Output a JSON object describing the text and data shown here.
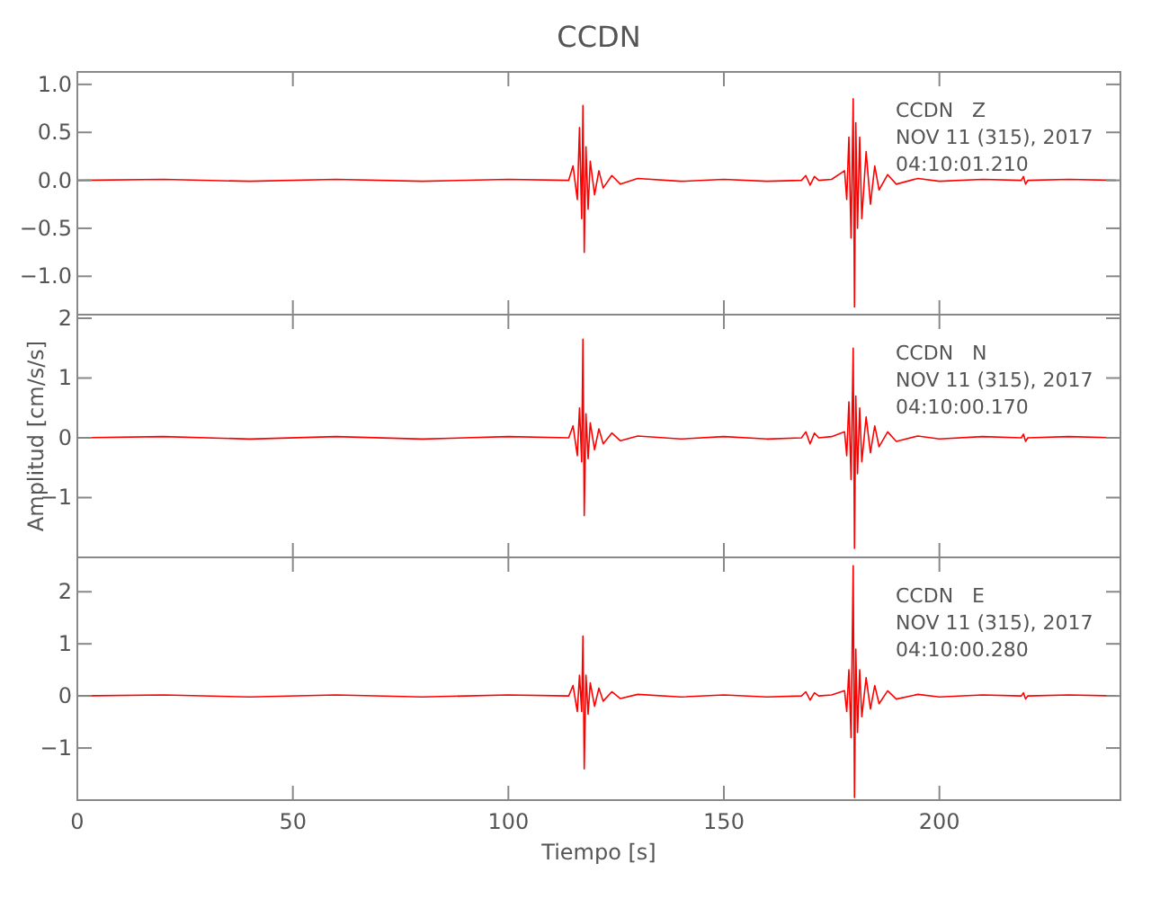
{
  "chart_data": [
    {
      "type": "line",
      "title": "CCDN",
      "x": [
        0,
        20,
        40,
        60,
        80,
        100,
        114,
        115,
        116,
        116.5,
        117,
        117.3,
        117.6,
        118,
        118.5,
        119,
        120,
        121,
        122,
        124,
        126,
        130,
        140,
        150,
        160,
        168,
        169,
        170,
        171,
        172,
        175,
        178,
        178.5,
        179,
        179.5,
        180,
        180.3,
        180.6,
        181,
        181.5,
        182,
        183,
        184,
        185,
        186,
        188,
        190,
        195,
        200,
        210,
        219,
        219.5,
        220,
        220.5,
        230,
        241
      ],
      "series": [
        {
          "color": "#ff0000",
          "values": [
            0,
            0.01,
            -0.01,
            0.01,
            -0.01,
            0.01,
            0,
            0.15,
            -0.2,
            0.55,
            -0.4,
            0.78,
            -0.75,
            0.35,
            -0.3,
            0.2,
            -0.15,
            0.1,
            -0.08,
            0.05,
            -0.04,
            0.02,
            -0.01,
            0.01,
            -0.01,
            0,
            0.05,
            -0.05,
            0.04,
            0,
            0.01,
            0.1,
            -0.2,
            0.45,
            -0.6,
            0.85,
            -1.32,
            0.6,
            -0.5,
            0.45,
            -0.4,
            0.3,
            -0.25,
            0.15,
            -0.1,
            0.06,
            -0.04,
            0.02,
            -0.01,
            0.01,
            0,
            0.04,
            -0.04,
            0,
            0.01,
            0
          ]
        }
      ],
      "xlim": [
        0,
        242
      ],
      "xticks": [
        0,
        50,
        100,
        150,
        200
      ],
      "ylim": [
        -1.4,
        1.13
      ],
      "yticks": [
        {
          "value": -1,
          "label": "−1.0"
        },
        {
          "value": -0.5,
          "label": "−0.5"
        },
        {
          "value": 0,
          "label": "0.0"
        },
        {
          "value": 0.5,
          "label": "0.5"
        },
        {
          "value": 1,
          "label": "1.0"
        }
      ],
      "tick_labels": "y",
      "grid": false,
      "marker": "none",
      "line_style": "solid",
      "annotations": [
        "CCDN   Z",
        "NOV 11 (315), 2017",
        "04:10:01.210"
      ]
    },
    {
      "type": "line",
      "ylabel": "Amplitud [cm/s/s]",
      "x": [
        0,
        20,
        40,
        60,
        80,
        100,
        114,
        115,
        116,
        116.5,
        117,
        117.3,
        117.6,
        118,
        118.5,
        119,
        120,
        121,
        122,
        124,
        126,
        130,
        140,
        150,
        160,
        168,
        169,
        170,
        171,
        172,
        175,
        178,
        178.5,
        179,
        179.5,
        180,
        180.3,
        180.6,
        181,
        181.5,
        182,
        183,
        184,
        185,
        186,
        188,
        190,
        195,
        200,
        210,
        219,
        219.5,
        220,
        220.5,
        230,
        241
      ],
      "series": [
        {
          "color": "#ff0000",
          "values": [
            0,
            0.02,
            -0.02,
            0.02,
            -0.02,
            0.02,
            0,
            0.2,
            -0.3,
            0.5,
            -0.4,
            1.65,
            -1.3,
            0.4,
            -0.35,
            0.25,
            -0.2,
            0.15,
            -0.1,
            0.08,
            -0.05,
            0.03,
            -0.02,
            0.02,
            -0.02,
            0,
            0.1,
            -0.1,
            0.08,
            0,
            0.02,
            0.1,
            -0.3,
            0.6,
            -0.7,
            1.5,
            -1.85,
            0.7,
            -0.6,
            0.5,
            -0.4,
            0.35,
            -0.25,
            0.2,
            -0.15,
            0.1,
            -0.06,
            0.03,
            -0.02,
            0.02,
            0,
            0.06,
            -0.06,
            0,
            0.02,
            0
          ]
        }
      ],
      "xlim": [
        0,
        242
      ],
      "xticks": [
        0,
        50,
        100,
        150,
        200
      ],
      "ylim": [
        -2,
        2.06
      ],
      "yticks": [
        -1,
        0,
        1,
        2
      ],
      "tick_labels": "y",
      "grid": false,
      "marker": "none",
      "line_style": "solid",
      "annotations": [
        "CCDN   N",
        "NOV 11 (315), 2017",
        "04:10:00.170"
      ]
    },
    {
      "type": "line",
      "xlabel": "Tiempo [s]",
      "x": [
        0,
        20,
        40,
        60,
        80,
        100,
        114,
        115,
        116,
        116.5,
        117,
        117.3,
        117.6,
        118,
        118.5,
        119,
        120,
        121,
        122,
        124,
        126,
        130,
        140,
        150,
        160,
        168,
        169,
        170,
        171,
        172,
        175,
        178,
        178.5,
        179,
        179.5,
        180,
        180.3,
        180.6,
        181,
        181.5,
        182,
        183,
        184,
        185,
        186,
        188,
        190,
        195,
        200,
        210,
        219,
        219.5,
        220,
        220.5,
        230,
        241
      ],
      "series": [
        {
          "color": "#ff0000",
          "values": [
            0,
            0.02,
            -0.02,
            0.02,
            -0.02,
            0.02,
            0,
            0.2,
            -0.3,
            0.4,
            -0.3,
            1.15,
            -1.4,
            0.4,
            -0.35,
            0.25,
            -0.2,
            0.15,
            -0.1,
            0.08,
            -0.05,
            0.03,
            -0.02,
            0.02,
            -0.02,
            0,
            0.08,
            -0.08,
            0.06,
            0,
            0.02,
            0.1,
            -0.3,
            0.5,
            -0.8,
            2.5,
            -1.95,
            0.9,
            -0.7,
            0.5,
            -0.4,
            0.35,
            -0.25,
            0.2,
            -0.15,
            0.1,
            -0.06,
            0.03,
            -0.02,
            0.02,
            0,
            0.06,
            -0.06,
            0,
            0.02,
            0
          ]
        }
      ],
      "xlim": [
        0,
        242
      ],
      "xticks": [
        0,
        50,
        100,
        150,
        200
      ],
      "ylim": [
        -2,
        2.66
      ],
      "yticks": [
        -1,
        0,
        1,
        2
      ],
      "grid": false,
      "marker": "none",
      "line_style": "solid",
      "annotations": [
        "CCDN   E",
        "NOV 11 (315), 2017",
        "04:10:00.280"
      ]
    }
  ]
}
